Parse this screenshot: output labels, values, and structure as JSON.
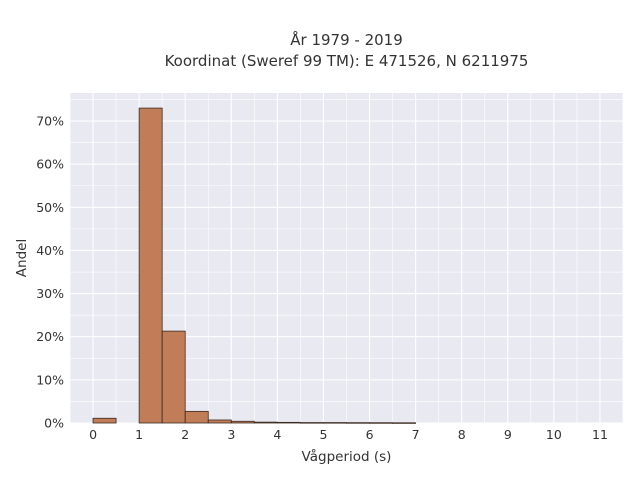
{
  "chart_data": {
    "type": "bar",
    "title_line1": "År 1979 - 2019",
    "title_line2": "Koordinat (Sweref 99 TM): E 471526, N 6211975",
    "xlabel": "Vågperiod (s)",
    "ylabel": "Andel",
    "xlim": [
      -0.5,
      11.5
    ],
    "ylim": [
      0,
      0.765
    ],
    "x_ticks": [
      0,
      1,
      2,
      3,
      4,
      5,
      6,
      7,
      8,
      9,
      10,
      11
    ],
    "x_tick_labels": [
      "0",
      "1",
      "2",
      "3",
      "4",
      "5",
      "6",
      "7",
      "8",
      "9",
      "10",
      "11"
    ],
    "y_ticks": [
      0,
      0.1,
      0.2,
      0.3,
      0.4,
      0.5,
      0.6,
      0.7
    ],
    "y_tick_labels": [
      "0%",
      "10%",
      "20%",
      "30%",
      "40%",
      "50%",
      "60%",
      "70%"
    ],
    "grid": true,
    "bin_width": 0.5,
    "bins": [
      {
        "x0": 0.0,
        "value": 0.011
      },
      {
        "x0": 0.5,
        "value": 0.0
      },
      {
        "x0": 1.0,
        "value": 0.73
      },
      {
        "x0": 1.5,
        "value": 0.213
      },
      {
        "x0": 2.0,
        "value": 0.027
      },
      {
        "x0": 2.5,
        "value": 0.007
      },
      {
        "x0": 3.0,
        "value": 0.004
      },
      {
        "x0": 3.5,
        "value": 0.002
      },
      {
        "x0": 4.0,
        "value": 0.0015
      },
      {
        "x0": 4.5,
        "value": 0.001
      },
      {
        "x0": 5.0,
        "value": 0.001
      },
      {
        "x0": 5.5,
        "value": 0.0008
      },
      {
        "x0": 6.0,
        "value": 0.0007
      },
      {
        "x0": 6.5,
        "value": 0.0005
      }
    ],
    "colors": {
      "bar_fill": "#c17d57",
      "bar_stroke": "#3a2a20",
      "plot_bg": "#e9e9f1",
      "grid": "#ffffff",
      "text": "#333333"
    }
  }
}
